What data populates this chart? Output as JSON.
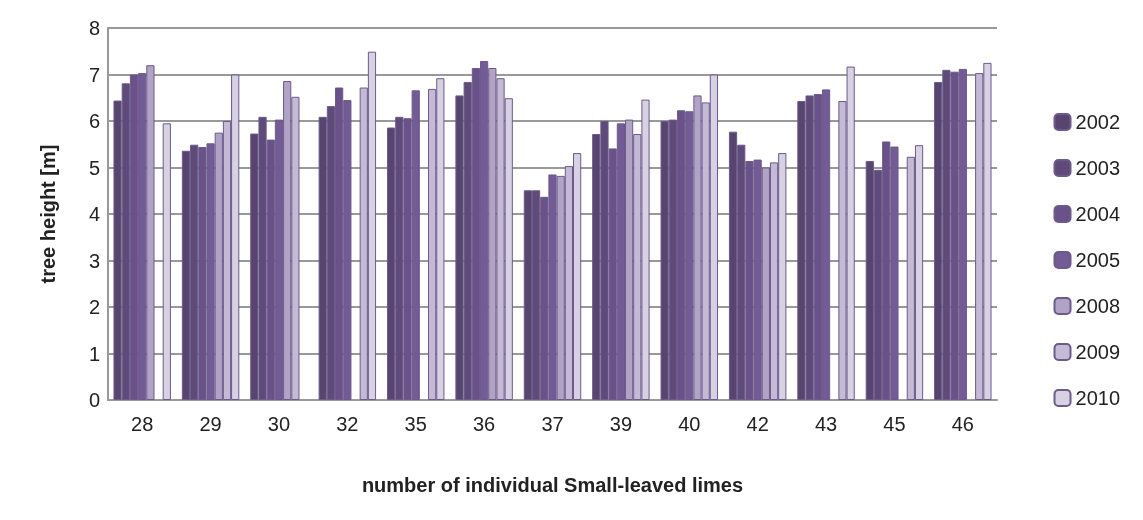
{
  "chart_data": {
    "type": "bar",
    "xlabel": "number of individual Small-leaved limes",
    "ylabel": "tree height [m]",
    "categories": [
      "28",
      "29",
      "30",
      "32",
      "35",
      "36",
      "37",
      "39",
      "40",
      "42",
      "43",
      "45",
      "46"
    ],
    "series": [
      {
        "name": "2002",
        "color": "#574570",
        "values": [
          6.44,
          5.36,
          5.73,
          6.09,
          5.86,
          6.55,
          4.51,
          5.72,
          6.0,
          5.77,
          6.43,
          5.14,
          6.84
        ]
      },
      {
        "name": "2003",
        "color": "#5f4a7a",
        "values": [
          6.81,
          5.49,
          6.09,
          6.32,
          6.09,
          6.84,
          4.51,
          6.0,
          6.03,
          5.49,
          6.55,
          4.95,
          7.1
        ]
      },
      {
        "name": "2004",
        "color": "#6a5189",
        "values": [
          7.0,
          5.44,
          5.6,
          6.72,
          6.06,
          7.14,
          4.37,
          5.41,
          6.23,
          5.14,
          6.58,
          5.56,
          7.06
        ]
      },
      {
        "name": "2005",
        "color": "#735b96",
        "values": [
          7.03,
          5.52,
          6.03,
          6.45,
          6.66,
          7.29,
          4.85,
          5.95,
          6.21,
          5.17,
          6.68,
          5.45,
          7.12
        ]
      },
      {
        "name": "2008",
        "color": "#b1a3c6",
        "values": [
          7.2,
          5.75,
          6.86,
          null,
          null,
          7.14,
          4.82,
          6.03,
          6.55,
          5.0,
          null,
          null,
          null
        ]
      },
      {
        "name": "2009",
        "color": "#c4bad6",
        "values": [
          null,
          6.0,
          6.52,
          6.72,
          6.69,
          6.92,
          5.03,
          5.72,
          6.4,
          5.11,
          6.43,
          5.23,
          7.03
        ]
      },
      {
        "name": "2010",
        "color": "#d7d1e3",
        "values": [
          5.95,
          7.0,
          null,
          7.49,
          6.92,
          6.49,
          5.31,
          6.46,
          7.0,
          5.31,
          7.17,
          5.48,
          7.25
        ]
      }
    ],
    "ylim": [
      0,
      8
    ],
    "yticks": [
      0,
      1,
      2,
      3,
      4,
      5,
      6,
      7,
      8
    ],
    "grid": "y",
    "legend": "right"
  }
}
